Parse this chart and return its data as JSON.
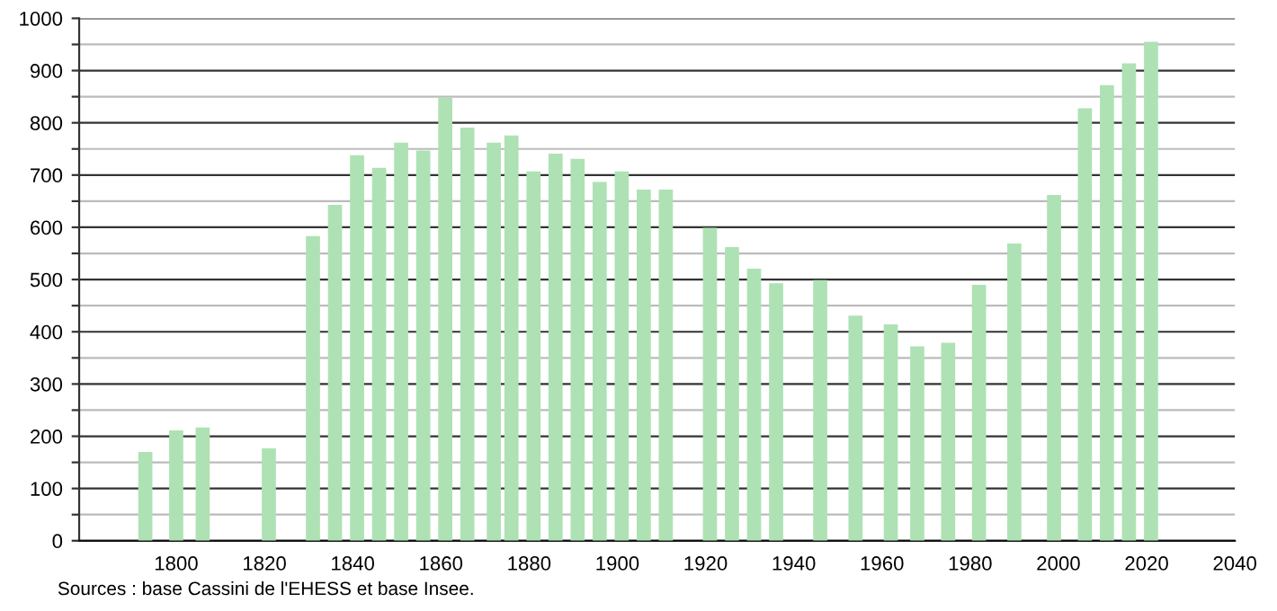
{
  "chart_data": {
    "type": "bar",
    "x": [
      1793,
      1800,
      1806,
      1821,
      1831,
      1836,
      1841,
      1846,
      1851,
      1856,
      1861,
      1866,
      1872,
      1876,
      1881,
      1886,
      1891,
      1896,
      1901,
      1906,
      1911,
      1921,
      1926,
      1931,
      1936,
      1946,
      1954,
      1962,
      1968,
      1975,
      1982,
      1990,
      1999,
      2006,
      2011,
      2016,
      2021
    ],
    "series": [
      {
        "color": "#aee2b4",
        "values": [
          170,
          211,
          217,
          177,
          583,
          643,
          738,
          714,
          762,
          747,
          848,
          791,
          762,
          776,
          707,
          741,
          731,
          687,
          707,
          672,
          672,
          599,
          562,
          521,
          493,
          499,
          431,
          414,
          372,
          379,
          490,
          569,
          662,
          828,
          872,
          914,
          955
        ]
      }
    ],
    "xlim": [
      1778,
      2040
    ],
    "xticks": [
      1800,
      1820,
      1840,
      1860,
      1880,
      1900,
      1920,
      1940,
      1960,
      1980,
      2000,
      2020,
      2040
    ],
    "ylim": [
      0,
      1000
    ],
    "yticks": [
      0,
      {
        "value": 50,
        "label": null
      },
      100,
      {
        "value": 150,
        "label": null
      },
      200,
      {
        "value": 250,
        "label": null
      },
      300,
      {
        "value": 350,
        "label": null
      },
      400,
      {
        "value": 450,
        "label": null
      },
      500,
      {
        "value": 550,
        "label": null
      },
      600,
      {
        "value": 650,
        "label": null
      },
      700,
      {
        "value": 750,
        "label": null
      },
      800,
      {
        "value": 850,
        "label": null
      },
      900,
      {
        "value": 950,
        "label": null
      },
      1000
    ],
    "grid": "y",
    "annotations": [
      "Sources : base Cassini de l'EHESS et base Insee."
    ]
  }
}
